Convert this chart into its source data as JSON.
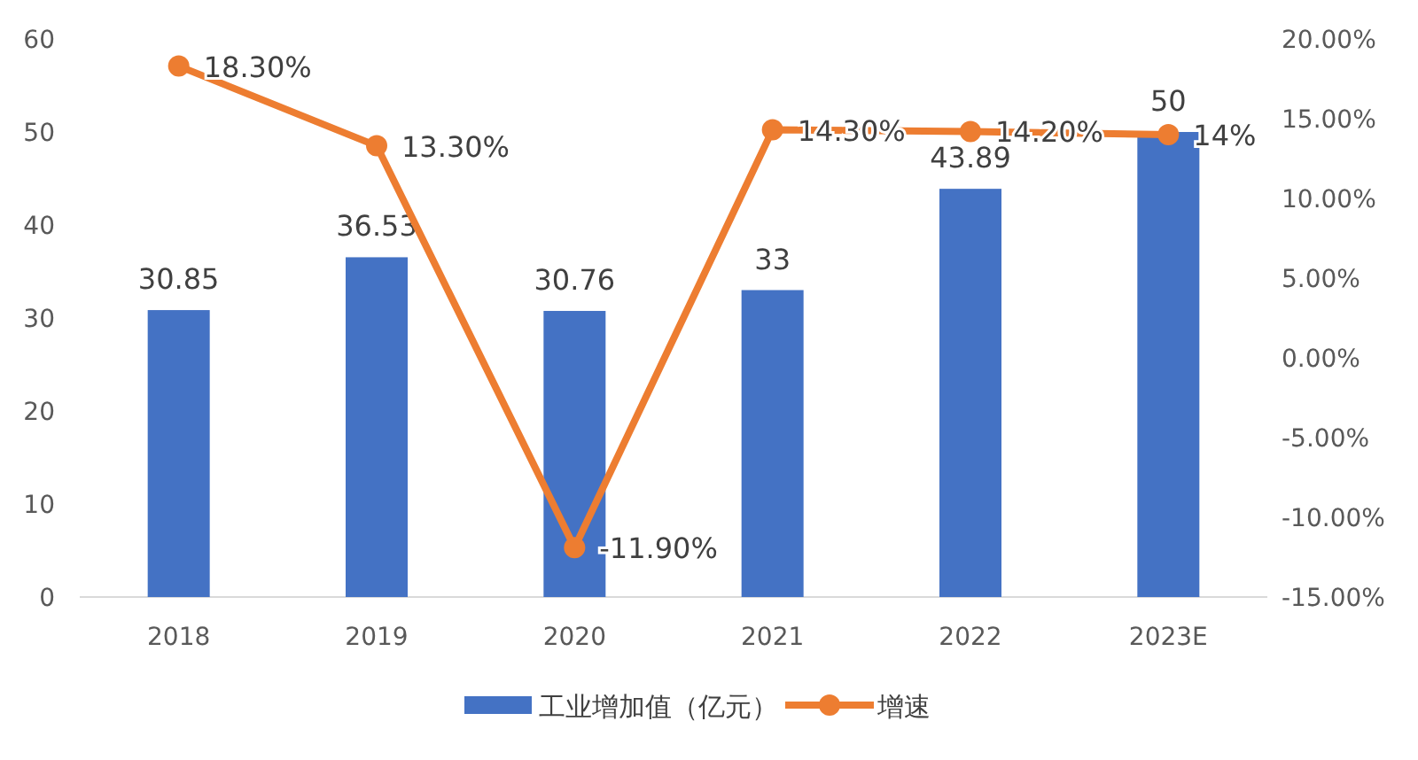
{
  "chart_data": {
    "type": "bar",
    "categories": [
      "2018",
      "2019",
      "2020",
      "2021",
      "2022",
      "2023E"
    ],
    "ylim": [
      0,
      60
    ],
    "yticks": [
      0,
      10,
      20,
      30,
      40,
      50,
      60
    ],
    "y2lim": [
      -15,
      20
    ],
    "y2ticks": [
      {
        "value": -15,
        "label": "-15.00%"
      },
      {
        "value": -10,
        "label": "-10.00%"
      },
      {
        "value": -5,
        "label": "-5.00%"
      },
      {
        "value": 0,
        "label": "0.00%"
      },
      {
        "value": 5,
        "label": "5.00%"
      },
      {
        "value": 10,
        "label": "10.00%"
      },
      {
        "value": 15,
        "label": "15.00%"
      },
      {
        "value": 20,
        "label": "20.00%"
      }
    ],
    "grid": false,
    "legend": "bottom",
    "data_labels": true,
    "marker": "circle",
    "series": [
      {
        "name": "工业增加值（亿元）",
        "color": "#4472c4",
        "values": [
          30.85,
          36.53,
          30.76,
          33,
          43.89,
          50
        ]
      },
      {
        "name": "增速",
        "type": "line",
        "axis": "y2",
        "color": "#ed7d31",
        "values": [
          18.3,
          13.3,
          -11.9,
          14.3,
          14.2,
          14
        ],
        "value_labels": [
          "18.30%",
          "13.30%",
          "-11.90%",
          "14.30%",
          "14.20%",
          "14%"
        ]
      }
    ]
  }
}
